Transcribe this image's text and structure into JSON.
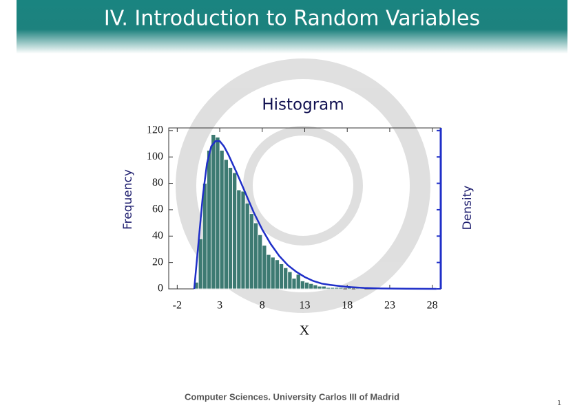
{
  "header": {
    "title": "IV. Introduction to Random Variables"
  },
  "footer": {
    "text": "Computer Sciences. University Carlos III of Madrid",
    "page": "1"
  },
  "chart_data": {
    "type": "histogram",
    "title": "Histogram",
    "xlabel": "X",
    "ylabel": "Frequency",
    "y2label": "Density",
    "bins": [
      0,
      0.5,
      1,
      1.5,
      2,
      2.5,
      3,
      3.5,
      4,
      4.5,
      5,
      5.5,
      6,
      6.5,
      7,
      7.5,
      8,
      8.5,
      9,
      9.5,
      10,
      10.5,
      11,
      11.5,
      12,
      12.5,
      13,
      13.5,
      14,
      14.5,
      15,
      15.5,
      16,
      16.5,
      17,
      17.5,
      18,
      18.5,
      19,
      19.5,
      20
    ],
    "values": [
      5,
      38,
      80,
      105,
      117,
      115,
      105,
      98,
      92,
      88,
      75,
      74,
      65,
      57,
      50,
      41,
      33,
      26,
      24,
      22,
      19,
      16,
      13,
      8,
      11,
      6,
      5,
      4,
      3,
      2,
      2,
      1,
      1,
      1,
      1,
      0,
      1,
      0,
      1,
      1
    ],
    "color": "#3d7a72",
    "curve": {
      "color": "#1f2fc8",
      "x": [
        0,
        0.5,
        1,
        1.5,
        2,
        2.5,
        3,
        3.5,
        4,
        5,
        6,
        7,
        8,
        9,
        10,
        11,
        12,
        13,
        14,
        15,
        16,
        18,
        20,
        22,
        25,
        28.5
      ],
      "y": [
        0,
        35,
        70,
        95,
        108,
        112,
        112,
        108,
        102,
        88,
        73,
        58,
        45,
        34,
        25,
        18,
        13,
        9,
        6,
        4,
        3,
        1.5,
        0.7,
        0.3,
        0.1,
        0
      ]
    },
    "xlim": [
      -3,
      29
    ],
    "ylim": [
      0,
      122
    ],
    "xticks": [
      -2,
      3,
      8,
      13,
      18,
      23,
      28
    ],
    "yticks": [
      0,
      20,
      40,
      60,
      80,
      100,
      120
    ]
  }
}
